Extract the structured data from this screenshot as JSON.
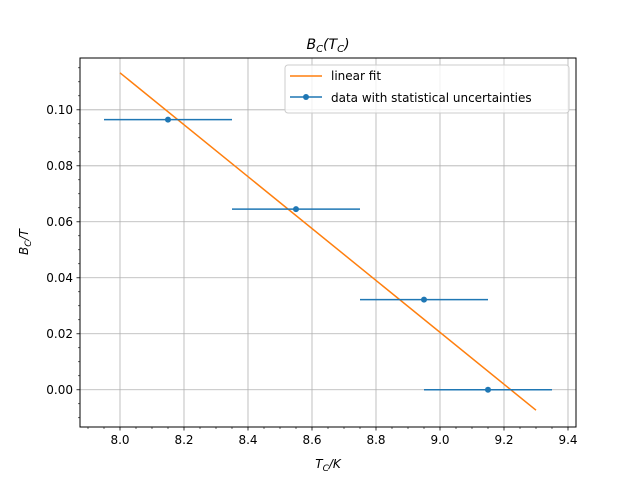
{
  "chart_data": {
    "type": "scatter",
    "title": {
      "main": "B",
      "sub": "C",
      "arg_main": "T",
      "arg_sub": "C"
    },
    "xlabel": {
      "main": "T",
      "sub": "C",
      "unit": "/K"
    },
    "ylabel": {
      "main": "B",
      "sub": "C",
      "unit": "/T"
    },
    "xlim": [
      7.875,
      9.425
    ],
    "ylim": [
      -0.0133,
      0.1185
    ],
    "x_ticks": [
      8.0,
      8.2,
      8.4,
      8.6,
      8.8,
      9.0,
      9.2,
      9.4
    ],
    "x_tick_labels": [
      "8.0",
      "8.2",
      "8.4",
      "8.6",
      "8.8",
      "9.0",
      "9.2",
      "9.4"
    ],
    "y_ticks": [
      0.0,
      0.02,
      0.04,
      0.06,
      0.08,
      0.1
    ],
    "y_tick_labels": [
      "0.00",
      "0.02",
      "0.04",
      "0.06",
      "0.08",
      "0.10"
    ],
    "grid": true,
    "legend_position": "top-right",
    "series": [
      {
        "name": "data with statistical uncertainties",
        "kind": "errorbar",
        "color": "#1f77b4",
        "x": [
          8.15,
          8.55,
          8.95,
          9.15
        ],
        "y": [
          0.0965,
          0.0645,
          0.0322,
          0.0
        ],
        "xerr": [
          0.2,
          0.2,
          0.2,
          0.2
        ]
      },
      {
        "name": "linear fit",
        "kind": "line",
        "color": "#ff7f0e",
        "x": [
          8.0,
          9.3
        ],
        "y": [
          0.1132,
          -0.0073
        ]
      }
    ]
  }
}
